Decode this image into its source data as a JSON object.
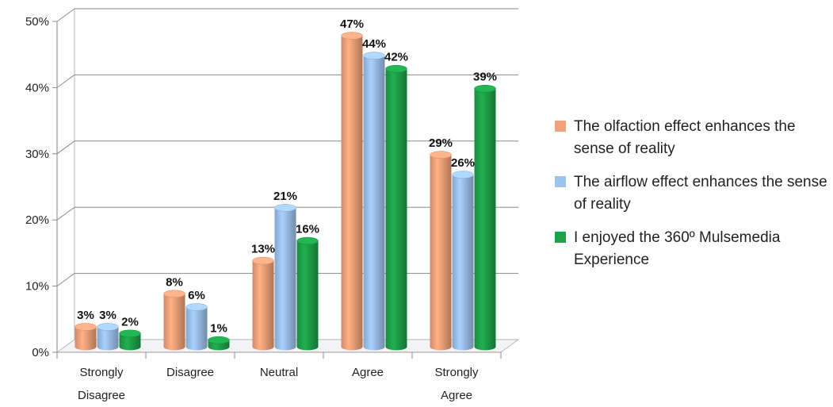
{
  "chart_data": {
    "type": "bar",
    "categories": [
      [
        "Strongly",
        "Disagree"
      ],
      [
        "Disagree"
      ],
      [
        "Neutral"
      ],
      [
        "Agree"
      ],
      [
        "Strongly",
        "Agree"
      ]
    ],
    "series": [
      {
        "name": "The olfaction effect enhances the sense of reality",
        "values": [
          3,
          8,
          13,
          47,
          29
        ],
        "labels": [
          "3%",
          "8%",
          "13%",
          "47%",
          "29%"
        ],
        "color": "#f2a27a"
      },
      {
        "name": "The airflow effect enhances the sense of reality",
        "values": [
          3,
          6,
          21,
          44,
          26
        ],
        "labels": [
          "3%",
          "6%",
          "21%",
          "44%",
          "26%"
        ],
        "color": "#9ec2ee"
      },
      {
        "name": "I enjoyed the 360º Mulsemedia Experience",
        "values": [
          2,
          1,
          16,
          42,
          39
        ],
        "labels": [
          "2%",
          "1%",
          "16%",
          "42%",
          "39%"
        ],
        "color": "#1fa34a"
      }
    ],
    "y_ticks": [
      "0%",
      "10%",
      "20%",
      "30%",
      "40%",
      "50%"
    ],
    "ylim": [
      0,
      50
    ],
    "grid": true,
    "legend_position": "right",
    "title": "",
    "xlabel": "",
    "ylabel": ""
  },
  "legend": {
    "items": [
      {
        "label": "The olfaction effect enhances the sense of reality",
        "color": "#f2a27a"
      },
      {
        "label": "The airflow effect enhances the sense of reality",
        "color": "#9ec2ee"
      },
      {
        "label": "I enjoyed the 360º Mulsemedia Experience",
        "color": "#1fa34a"
      }
    ]
  }
}
